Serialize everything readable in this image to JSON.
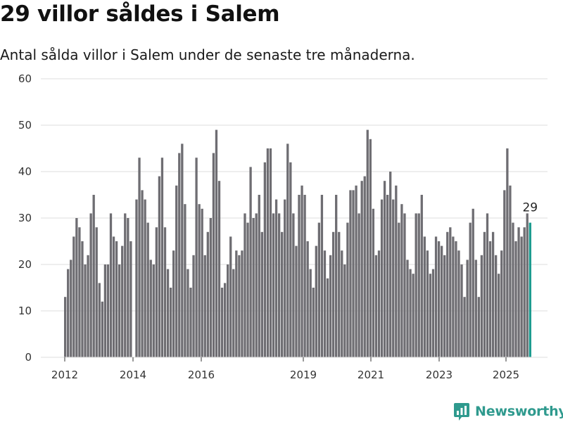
{
  "chart_data": {
    "type": "bar",
    "title": "29 villor såldes i Salem",
    "subtitle": "Antal sålda villor i Salem under de senaste tre månaderna.",
    "ylim": [
      0,
      60
    ],
    "yticks": [
      0,
      10,
      20,
      30,
      40,
      50,
      60
    ],
    "xticks": [
      "2012",
      "2014",
      "2016",
      "2019",
      "2021",
      "2023",
      "2025"
    ],
    "grid": true,
    "highlight_color": "#1a9a8e",
    "bar_color": "#6e6d72",
    "last_value_label": "29",
    "values": [
      13,
      19,
      21,
      26,
      30,
      28,
      25,
      20,
      22,
      31,
      35,
      28,
      16,
      12,
      20,
      20,
      31,
      26,
      25,
      20,
      24,
      31,
      30,
      25,
      0,
      34,
      43,
      36,
      34,
      29,
      21,
      20,
      28,
      39,
      43,
      28,
      19,
      15,
      23,
      37,
      44,
      46,
      33,
      19,
      15,
      22,
      43,
      33,
      32,
      22,
      27,
      30,
      44,
      49,
      38,
      15,
      16,
      20,
      26,
      19,
      23,
      22,
      23,
      31,
      29,
      41,
      30,
      31,
      35,
      27,
      42,
      45,
      45,
      31,
      34,
      31,
      27,
      34,
      46,
      42,
      31,
      24,
      35,
      37,
      35,
      25,
      19,
      15,
      24,
      29,
      35,
      23,
      17,
      22,
      27,
      35,
      27,
      23,
      20,
      29,
      36,
      36,
      37,
      31,
      38,
      39,
      49,
      47,
      32,
      22,
      23,
      34,
      38,
      35,
      40,
      34,
      37,
      29,
      33,
      31,
      21,
      19,
      18,
      31,
      31,
      35,
      26,
      23,
      18,
      19,
      26,
      25,
      24,
      22,
      27,
      28,
      26,
      25,
      23,
      20,
      13,
      21,
      29,
      32,
      21,
      13,
      22,
      27,
      31,
      25,
      27,
      22,
      18,
      23,
      36,
      45,
      37,
      29,
      25,
      28,
      26,
      28,
      31,
      29
    ]
  },
  "brand": {
    "name": "Newsworthy",
    "icon": "newsworthy-logo-icon",
    "color": "#2f9a8e"
  }
}
